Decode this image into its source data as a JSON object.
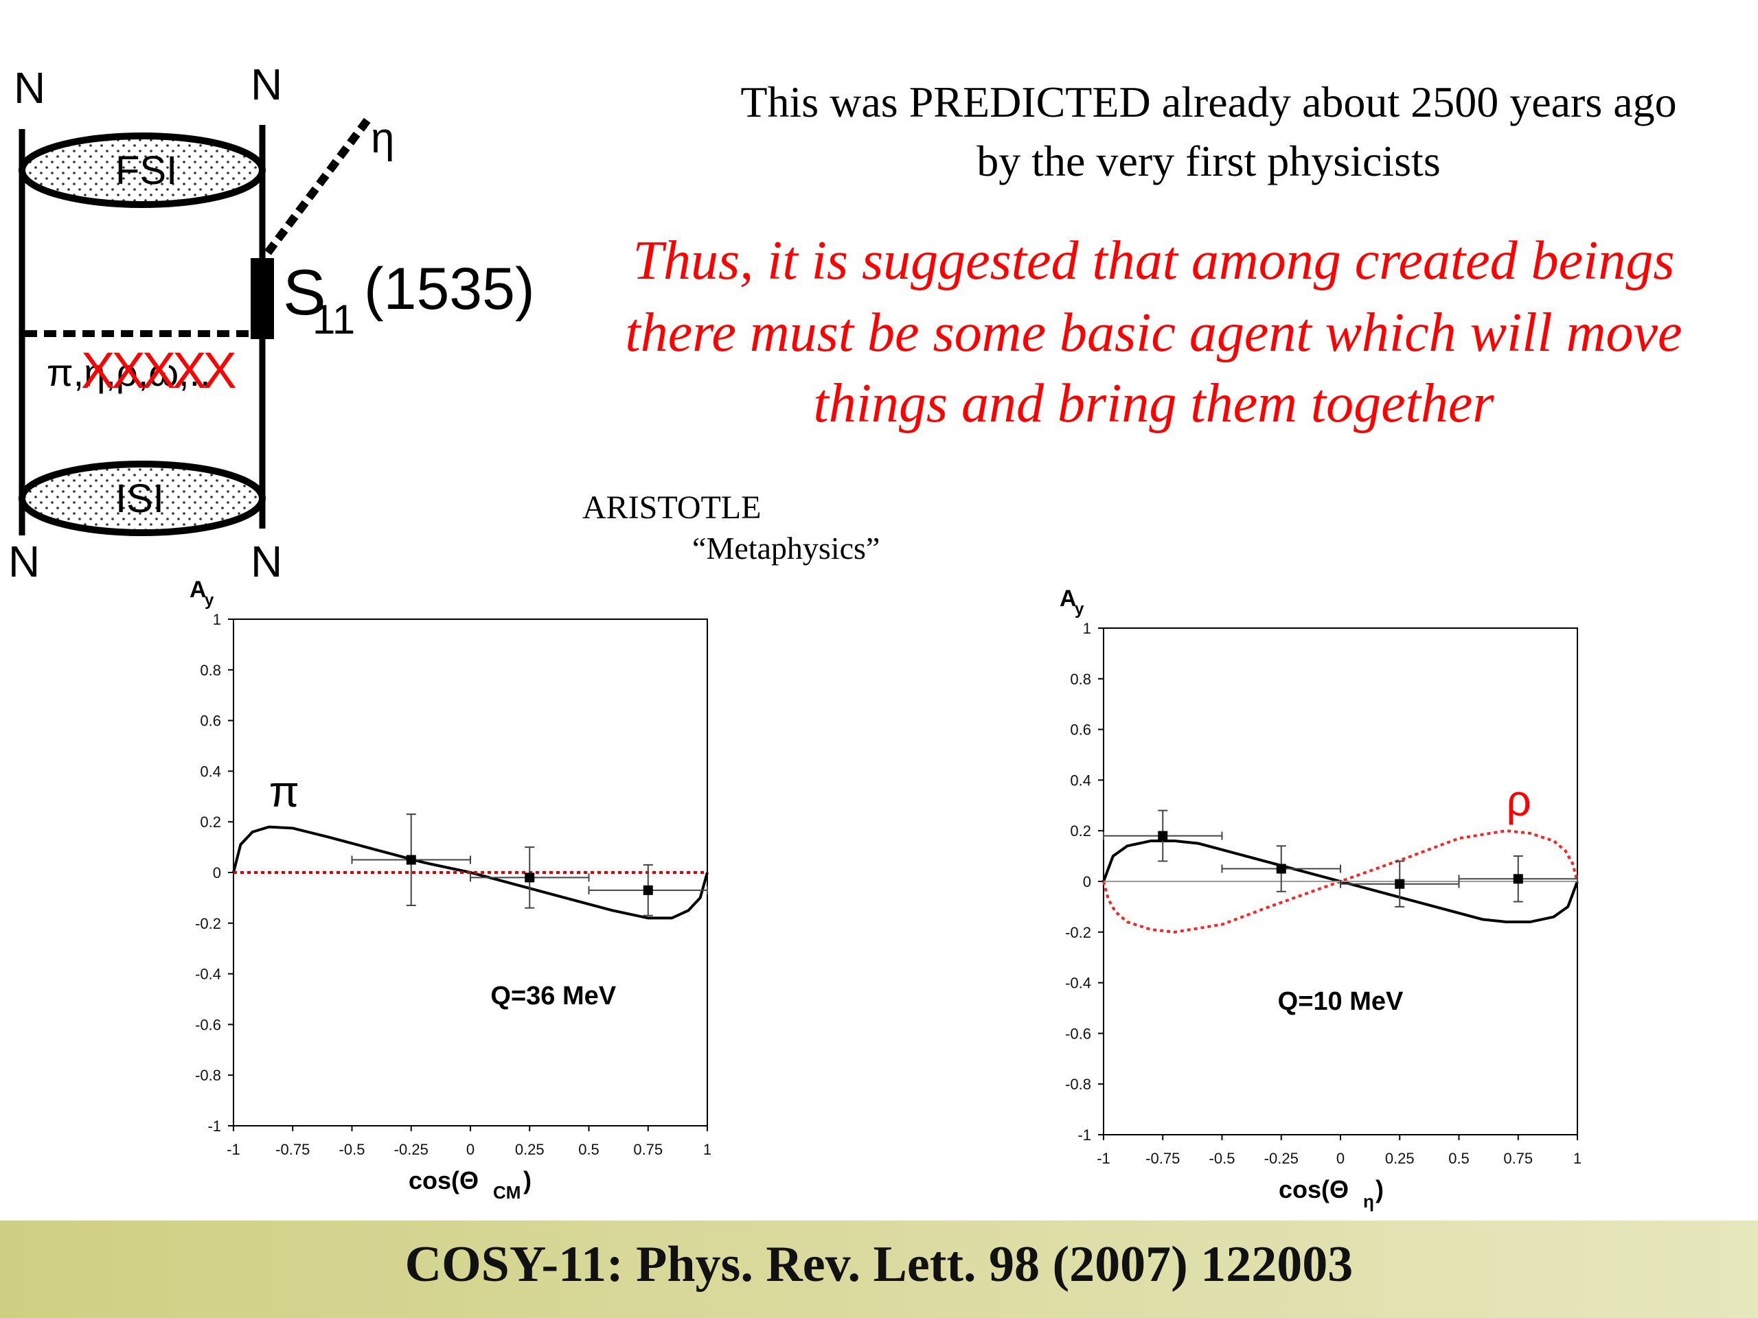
{
  "quote": {
    "line1": "This was PREDICTED already about 2500 years ago",
    "line2": "by the very first physicists",
    "red_lines": [
      "Thus, it is suggested that among created beings",
      "there must be some basic agent which will move",
      "things and bring them together"
    ],
    "author": "ARISTOTLE",
    "work": "“Metaphysics”"
  },
  "diagram": {
    "nucleon": "N",
    "fsi": "FSI",
    "isi": "ISI",
    "eta": "η",
    "resonance": "S",
    "resonance_sub": "11",
    "resonance_mass": "(1535)",
    "exchange": "π,η,ρ,ω,..",
    "cross_marks": "XXXXX",
    "colors": {
      "line": "#000000",
      "cross": "#ff0000"
    }
  },
  "footer": {
    "citation": "COSY-11: Phys. Rev. Lett. 98 (2007) 122003"
  },
  "chart_data": [
    {
      "type": "scatter",
      "ylabel": "A",
      "ylabel_sub": "y",
      "xlabel": "cos(Θ",
      "xlabel_sub": "CM",
      "xlabel_end": ")",
      "annotation": "Q=36 MeV",
      "curve_label": "π",
      "xlim": [
        -1,
        1
      ],
      "ylim": [
        -1,
        1
      ],
      "xticks": [
        "-1",
        "-0.75",
        "-0.5",
        "-0.25",
        "0",
        "0.25",
        "0.5",
        "0.75",
        "1"
      ],
      "yticks": [
        "1",
        "0.8",
        "0.6",
        "0.4",
        "0.2",
        "0",
        "-0.2",
        "-0.4",
        "-0.6",
        "-0.8",
        "-1"
      ],
      "points": [
        {
          "x": -0.25,
          "y": 0.05,
          "xerr": 0.25,
          "yerr": 0.18
        },
        {
          "x": 0.25,
          "y": -0.02,
          "xerr": 0.25,
          "yerr": 0.12
        },
        {
          "x": 0.75,
          "y": -0.07,
          "xerr": 0.25,
          "yerr": 0.1
        }
      ],
      "curves": [
        {
          "color": "#000000",
          "dashed": false,
          "x": [
            -1,
            -0.97,
            -0.92,
            -0.85,
            -0.75,
            -0.6,
            -0.4,
            -0.2,
            0,
            0.2,
            0.4,
            0.6,
            0.75,
            0.85,
            0.92,
            0.97,
            1
          ],
          "y": [
            0,
            0.11,
            0.16,
            0.18,
            0.175,
            0.14,
            0.09,
            0.04,
            0,
            -0.05,
            -0.1,
            -0.15,
            -0.18,
            -0.18,
            -0.15,
            -0.1,
            0
          ]
        },
        {
          "color": "#dd0000",
          "dashed": true,
          "x": [
            -1,
            1
          ],
          "y": [
            0,
            0
          ]
        }
      ]
    },
    {
      "type": "scatter",
      "ylabel": "A",
      "ylabel_sub": "y",
      "xlabel": "cos(Θ",
      "xlabel_sub": "η",
      "xlabel_end": ")",
      "annotation": "Q=10 MeV",
      "curve_label": "ρ",
      "xlim": [
        -1,
        1
      ],
      "ylim": [
        -1,
        1
      ],
      "xticks": [
        "-1",
        "-0.75",
        "-0.5",
        "-0.25",
        "0",
        "0.25",
        "0.5",
        "0.75",
        "1"
      ],
      "yticks": [
        "1",
        "0.8",
        "0.6",
        "0.4",
        "0.2",
        "0",
        "-0.2",
        "-0.4",
        "-0.6",
        "-0.8",
        "-1"
      ],
      "points": [
        {
          "x": -0.75,
          "y": 0.18,
          "xerr": 0.25,
          "yerr": 0.1
        },
        {
          "x": -0.25,
          "y": 0.05,
          "xerr": 0.25,
          "yerr": 0.09
        },
        {
          "x": 0.25,
          "y": -0.01,
          "xerr": 0.25,
          "yerr": 0.09
        },
        {
          "x": 0.75,
          "y": 0.01,
          "xerr": 0.25,
          "yerr": 0.09
        }
      ],
      "curves": [
        {
          "color": "#000000",
          "dashed": false,
          "x": [
            -1,
            -0.96,
            -0.9,
            -0.8,
            -0.7,
            -0.6,
            -0.4,
            -0.2,
            0,
            0.2,
            0.4,
            0.6,
            0.7,
            0.8,
            0.9,
            0.96,
            1
          ],
          "y": [
            0,
            0.1,
            0.14,
            0.16,
            0.16,
            0.15,
            0.1,
            0.05,
            0,
            -0.05,
            -0.1,
            -0.15,
            -0.16,
            -0.16,
            -0.14,
            -0.1,
            0
          ]
        },
        {
          "color": "#ff2020",
          "dashed": true,
          "x": [
            -1,
            -0.98,
            -0.95,
            -0.9,
            -0.8,
            -0.7,
            -0.5,
            -0.3,
            0,
            0.3,
            0.5,
            0.7,
            0.8,
            0.9,
            0.95,
            0.98,
            1
          ],
          "y": [
            0,
            -0.07,
            -0.12,
            -0.16,
            -0.19,
            -0.2,
            -0.17,
            -0.1,
            0,
            0.1,
            0.17,
            0.2,
            0.19,
            0.16,
            0.12,
            0.07,
            0
          ]
        },
        {
          "color": "#999999",
          "dashed": false,
          "x": [
            -1,
            1
          ],
          "y": [
            0,
            0
          ]
        }
      ]
    }
  ]
}
